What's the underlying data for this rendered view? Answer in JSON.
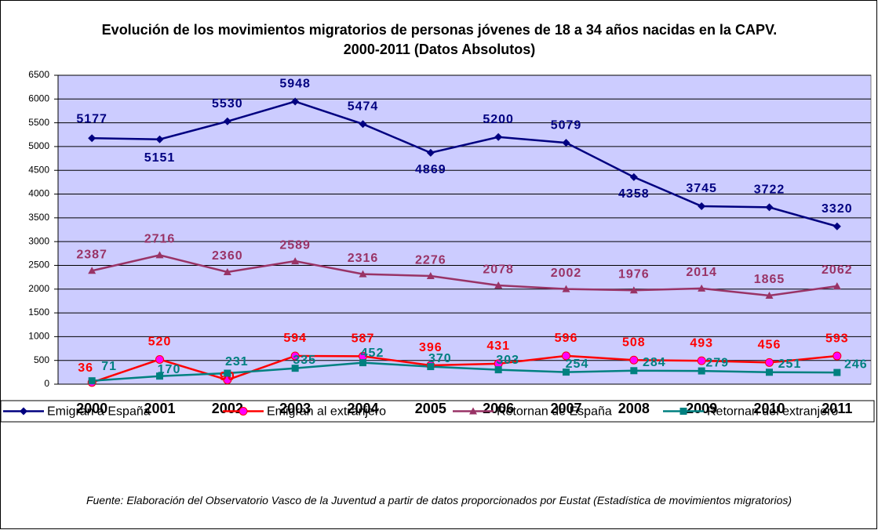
{
  "chart_data": {
    "type": "line",
    "title": "Evolución de los movimientos migratorios de personas jóvenes de 18 a 34 años nacidas en la CAPV. 2000-2011 (Datos Absolutos)",
    "categories": [
      "2000",
      "2001",
      "2002",
      "2003",
      "2004",
      "2005",
      "2006",
      "2007",
      "2008",
      "2009",
      "2010",
      "2011"
    ],
    "series": [
      {
        "name": "Emigran a España",
        "color": "#000080",
        "marker": "diamond",
        "values": [
          5177,
          5151,
          5530,
          5948,
          5474,
          4869,
          5200,
          5079,
          4358,
          3745,
          3722,
          3320
        ]
      },
      {
        "name": "Emigran al extranjero",
        "color": "#ff0000",
        "marker_color": "#ff00ff",
        "marker": "circle",
        "values": [
          36,
          520,
          90,
          594,
          587,
          396,
          431,
          596,
          508,
          493,
          456,
          593
        ]
      },
      {
        "name": "Retornan de España",
        "color": "#993366",
        "marker": "triangle",
        "values": [
          2387,
          2716,
          2360,
          2589,
          2316,
          2276,
          2078,
          2002,
          1976,
          2014,
          1865,
          2062
        ]
      },
      {
        "name": "Retornan del extranjero",
        "color": "#008080",
        "marker": "square",
        "values": [
          71,
          170,
          231,
          335,
          452,
          370,
          303,
          254,
          284,
          279,
          251,
          246
        ]
      }
    ],
    "ylim": [
      0,
      6500
    ],
    "yticks": [
      0,
      500,
      1000,
      1500,
      2000,
      2500,
      3000,
      3500,
      4000,
      4500,
      5000,
      5500,
      6000,
      6500
    ],
    "grid": true,
    "legend": "bottom",
    "source": "Fuente: Elaboración del Observatorio Vasco de la Juventud a partir de datos proporcionados por Eustat (Estadística de movimientos migratorios)"
  }
}
